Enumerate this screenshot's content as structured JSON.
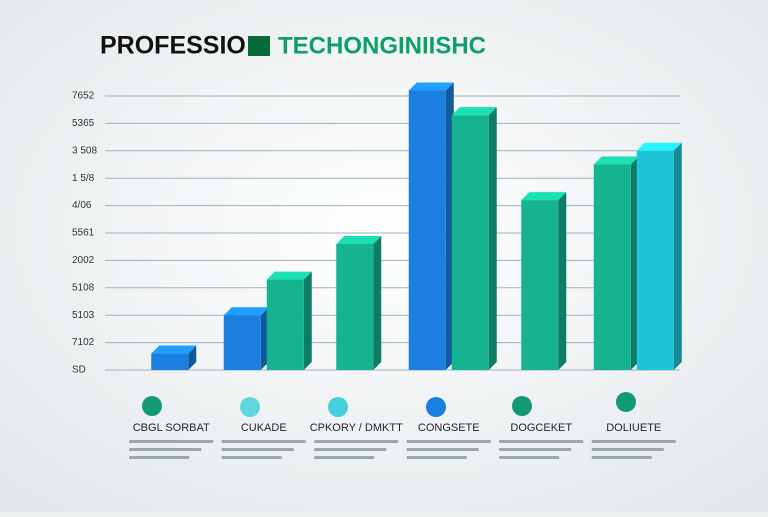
{
  "chart_data": {
    "type": "bar3d",
    "title": "PROFESSIO",
    "title_accent": "TECHONGINIISHC",
    "categories": [
      "CBGL SORBAT",
      "CUKADE",
      "CPKORY / DMKTT",
      "CONGSETE",
      "DOGCEKET",
      "DOLIUETE"
    ],
    "series": [
      {
        "color": "#1a7fe0",
        "values": [
          0.6,
          2.0,
          null,
          10.2,
          null,
          null
        ]
      },
      {
        "color": "#16b391",
        "values": [
          null,
          3.3,
          4.6,
          9.3,
          6.2,
          7.5
        ]
      },
      {
        "color": "#1fc3d6",
        "values": [
          null,
          null,
          null,
          null,
          null,
          8.0
        ]
      }
    ],
    "ylim": [
      0,
      10
    ],
    "yticks": [
      {
        "value": 0,
        "label": "SD"
      },
      {
        "value": 1,
        "label": "7102"
      },
      {
        "value": 2,
        "label": "5103"
      },
      {
        "value": 3,
        "label": "5108"
      },
      {
        "value": 4,
        "label": "2002"
      },
      {
        "value": 5,
        "label": "5561"
      },
      {
        "value": 6,
        "label": "4/06"
      },
      {
        "value": 7,
        "label": "1 5/8"
      },
      {
        "value": 8,
        "label": "3 508"
      },
      {
        "value": 9,
        "label": "5365"
      },
      {
        "value": 10,
        "label": "7652"
      }
    ],
    "grid": true
  }
}
